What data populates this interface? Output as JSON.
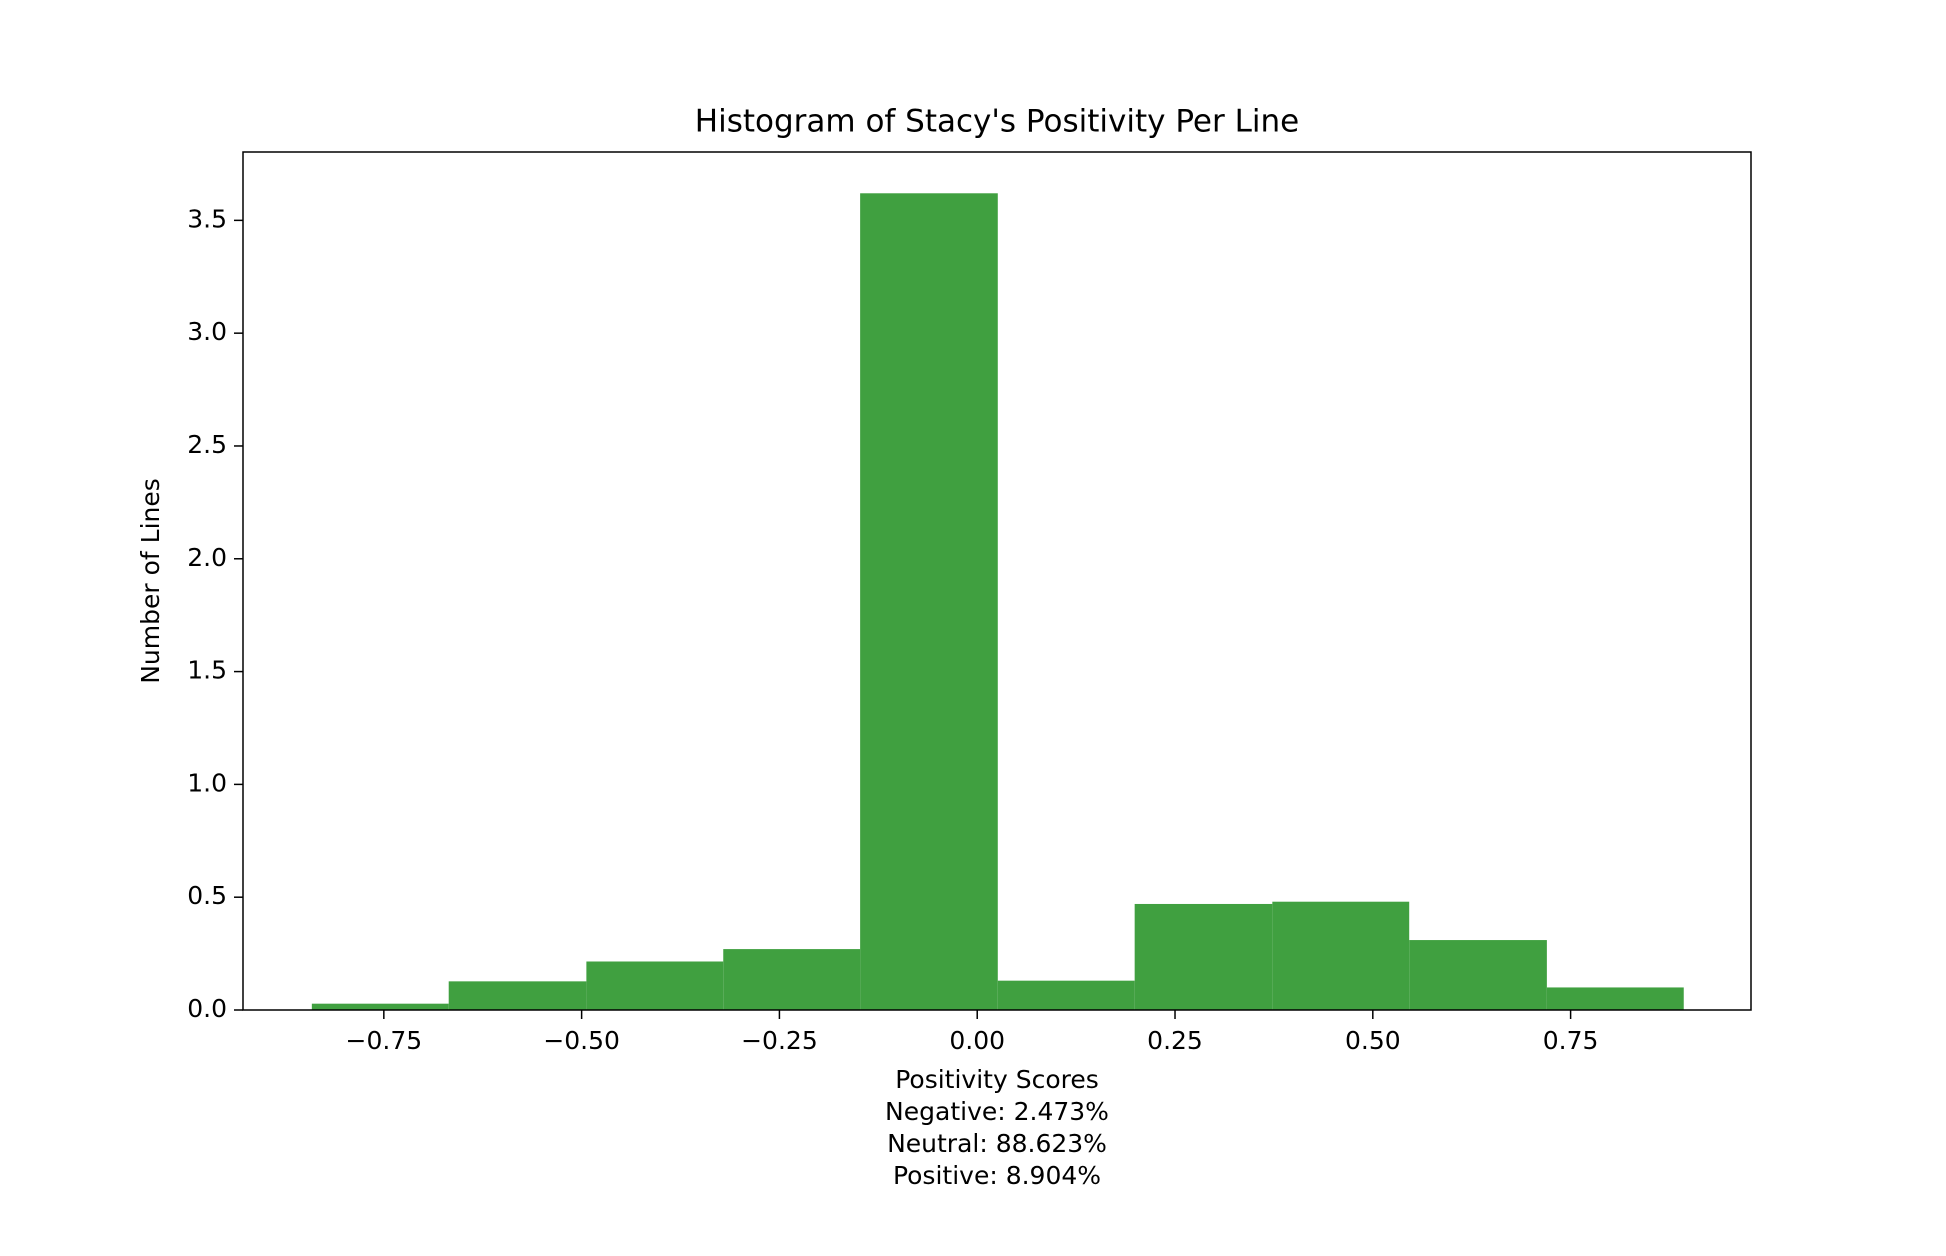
{
  "chart_data": {
    "type": "histogram",
    "title": "Histogram of Stacy's Positivity Per Line",
    "xlabel": "Positivity Scores",
    "annotations": [
      "Negative: 2.473%",
      "Neutral: 88.623%",
      "Positive: 8.904%"
    ],
    "ylabel": "Number of Lines",
    "bins": [
      -0.841,
      -0.668,
      -0.494,
      -0.321,
      -0.148,
      0.026,
      0.199,
      0.373,
      0.546,
      0.72,
      0.893
    ],
    "values": [
      0.028,
      0.127,
      0.215,
      0.27,
      3.62,
      0.13,
      0.47,
      0.48,
      0.31,
      0.1
    ],
    "color": "#40a040",
    "xlim": [
      -0.928,
      0.978
    ],
    "xticks": [
      {
        "value": -0.75,
        "label": "−0.75"
      },
      {
        "value": -0.5,
        "label": "−0.50"
      },
      {
        "value": -0.25,
        "label": "−0.25"
      },
      {
        "value": 0,
        "label": "0.00"
      },
      0.25,
      {
        "value": 0.5,
        "label": "0.50"
      },
      0.75
    ],
    "ylim": [
      0,
      3.803
    ],
    "yticks": [
      {
        "value": 0,
        "label": "0.0"
      },
      0.5,
      {
        "value": 1,
        "label": "1.0"
      },
      1.5,
      {
        "value": 2,
        "label": "2.0"
      },
      2.5,
      {
        "value": 3,
        "label": "3.0"
      },
      3.5
    ]
  }
}
